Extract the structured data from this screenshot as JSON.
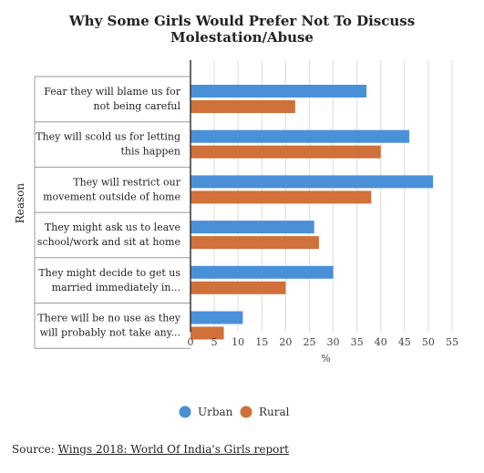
{
  "chart_data": {
    "type": "bar",
    "orientation": "horizontal",
    "title": "Why Some Girls Would Prefer Not To Discuss Molestation/Abuse",
    "xlabel": "%",
    "ylabel": "Reason",
    "xlim": [
      0,
      55
    ],
    "xticks": [
      "0",
      "5",
      "10",
      "15",
      "20",
      "25",
      "30",
      "35",
      "40",
      "45",
      "50",
      "55"
    ],
    "grid": "vertical",
    "legend_position": "bottom",
    "categories": [
      [
        "Fear they will blame us for",
        "not being careful"
      ],
      [
        "They will scold us for letting",
        "this happen"
      ],
      [
        "They will restrict our",
        "movement outside of home"
      ],
      [
        "They might ask us to leave",
        "school/work and sit at home"
      ],
      [
        "They might decide to get us",
        "married immediately in..."
      ],
      [
        "There will be no use as they",
        "will probably not take any..."
      ]
    ],
    "series": [
      {
        "name": "Urban",
        "color": "#4a90d9",
        "values": [
          37,
          46,
          51,
          26,
          30,
          11
        ]
      },
      {
        "name": "Rural",
        "color": "#d0703a",
        "values": [
          22,
          40,
          38,
          27,
          20,
          7
        ]
      }
    ]
  },
  "source": {
    "label": "Source:",
    "text": "Wings 2018: World Of India's Girls report"
  }
}
